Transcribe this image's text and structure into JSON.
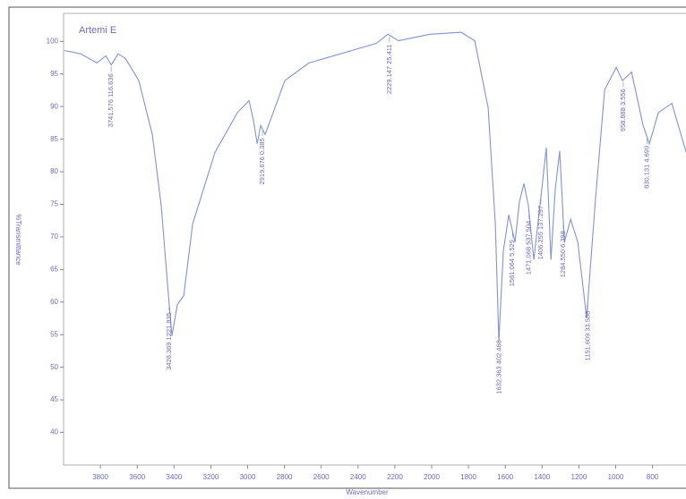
{
  "chart_data": {
    "type": "line",
    "title": "Artemi E",
    "x_label": "Wavenumber",
    "y_label": "%Transmittance",
    "color": "#7f93d6",
    "x": [
      3995,
      3907,
      3819,
      3771,
      3741,
      3703,
      3664,
      3591,
      3518,
      3469,
      3430,
      3411,
      3382,
      3347,
      3299,
      3177,
      3055,
      2992,
      2968,
      2948,
      2929,
      2905,
      2861,
      2798,
      2666,
      2496,
      2301,
      2238,
      2180,
      2009,
      1839,
      1766,
      1693,
      1654,
      1635,
      1610,
      1581,
      1547,
      1523,
      1499,
      1474,
      1445,
      1401,
      1377,
      1352,
      1328,
      1304,
      1279,
      1245,
      1206,
      1158,
      1109,
      1060,
      997,
      963,
      914,
      851,
      817,
      768,
      695,
      617
    ],
    "values": [
      98.6,
      98.1,
      96.7,
      97.8,
      96.4,
      98.1,
      97.4,
      94,
      85.7,
      74.7,
      61,
      54.8,
      59.6,
      61,
      72,
      83,
      89.1,
      90.9,
      87.8,
      84.3,
      87.1,
      85.7,
      89.1,
      94,
      96.7,
      98.1,
      99.7,
      101.1,
      100.1,
      101.1,
      101.4,
      100.1,
      89.8,
      72,
      54.1,
      67.9,
      73.4,
      69.2,
      75.4,
      78.2,
      74.7,
      66.5,
      77.5,
      83.7,
      66.5,
      77.5,
      83.2,
      69.2,
      72.7,
      69.2,
      57.6,
      76.1,
      92.6,
      96,
      94,
      95.3,
      87.1,
      84.3,
      89.1,
      90.5,
      83
    ],
    "xlim": [
      4000,
      618
    ],
    "ylim": [
      35,
      104.3
    ],
    "xticks": [
      3800,
      3600,
      3400,
      3200,
      3000,
      2800,
      2600,
      2400,
      2200,
      2000,
      1800,
      1600,
      1400,
      1200,
      1000,
      800
    ],
    "yticks": [
      40,
      45,
      50,
      55,
      60,
      65,
      70,
      75,
      80,
      85,
      90,
      95,
      100
    ],
    "annotations": [
      "3741.576 116.636",
      "3426.369 1221.835",
      "2919.676 0.385",
      "2229.147 25.411",
      "1632.363 402.468",
      "1561.064 5.529",
      "1471.068 537.504",
      "1406.255 137.297",
      "1284.550 6.398",
      "1151.609 33.588",
      "958.888 3.556",
      "830.131 4.699"
    ]
  }
}
